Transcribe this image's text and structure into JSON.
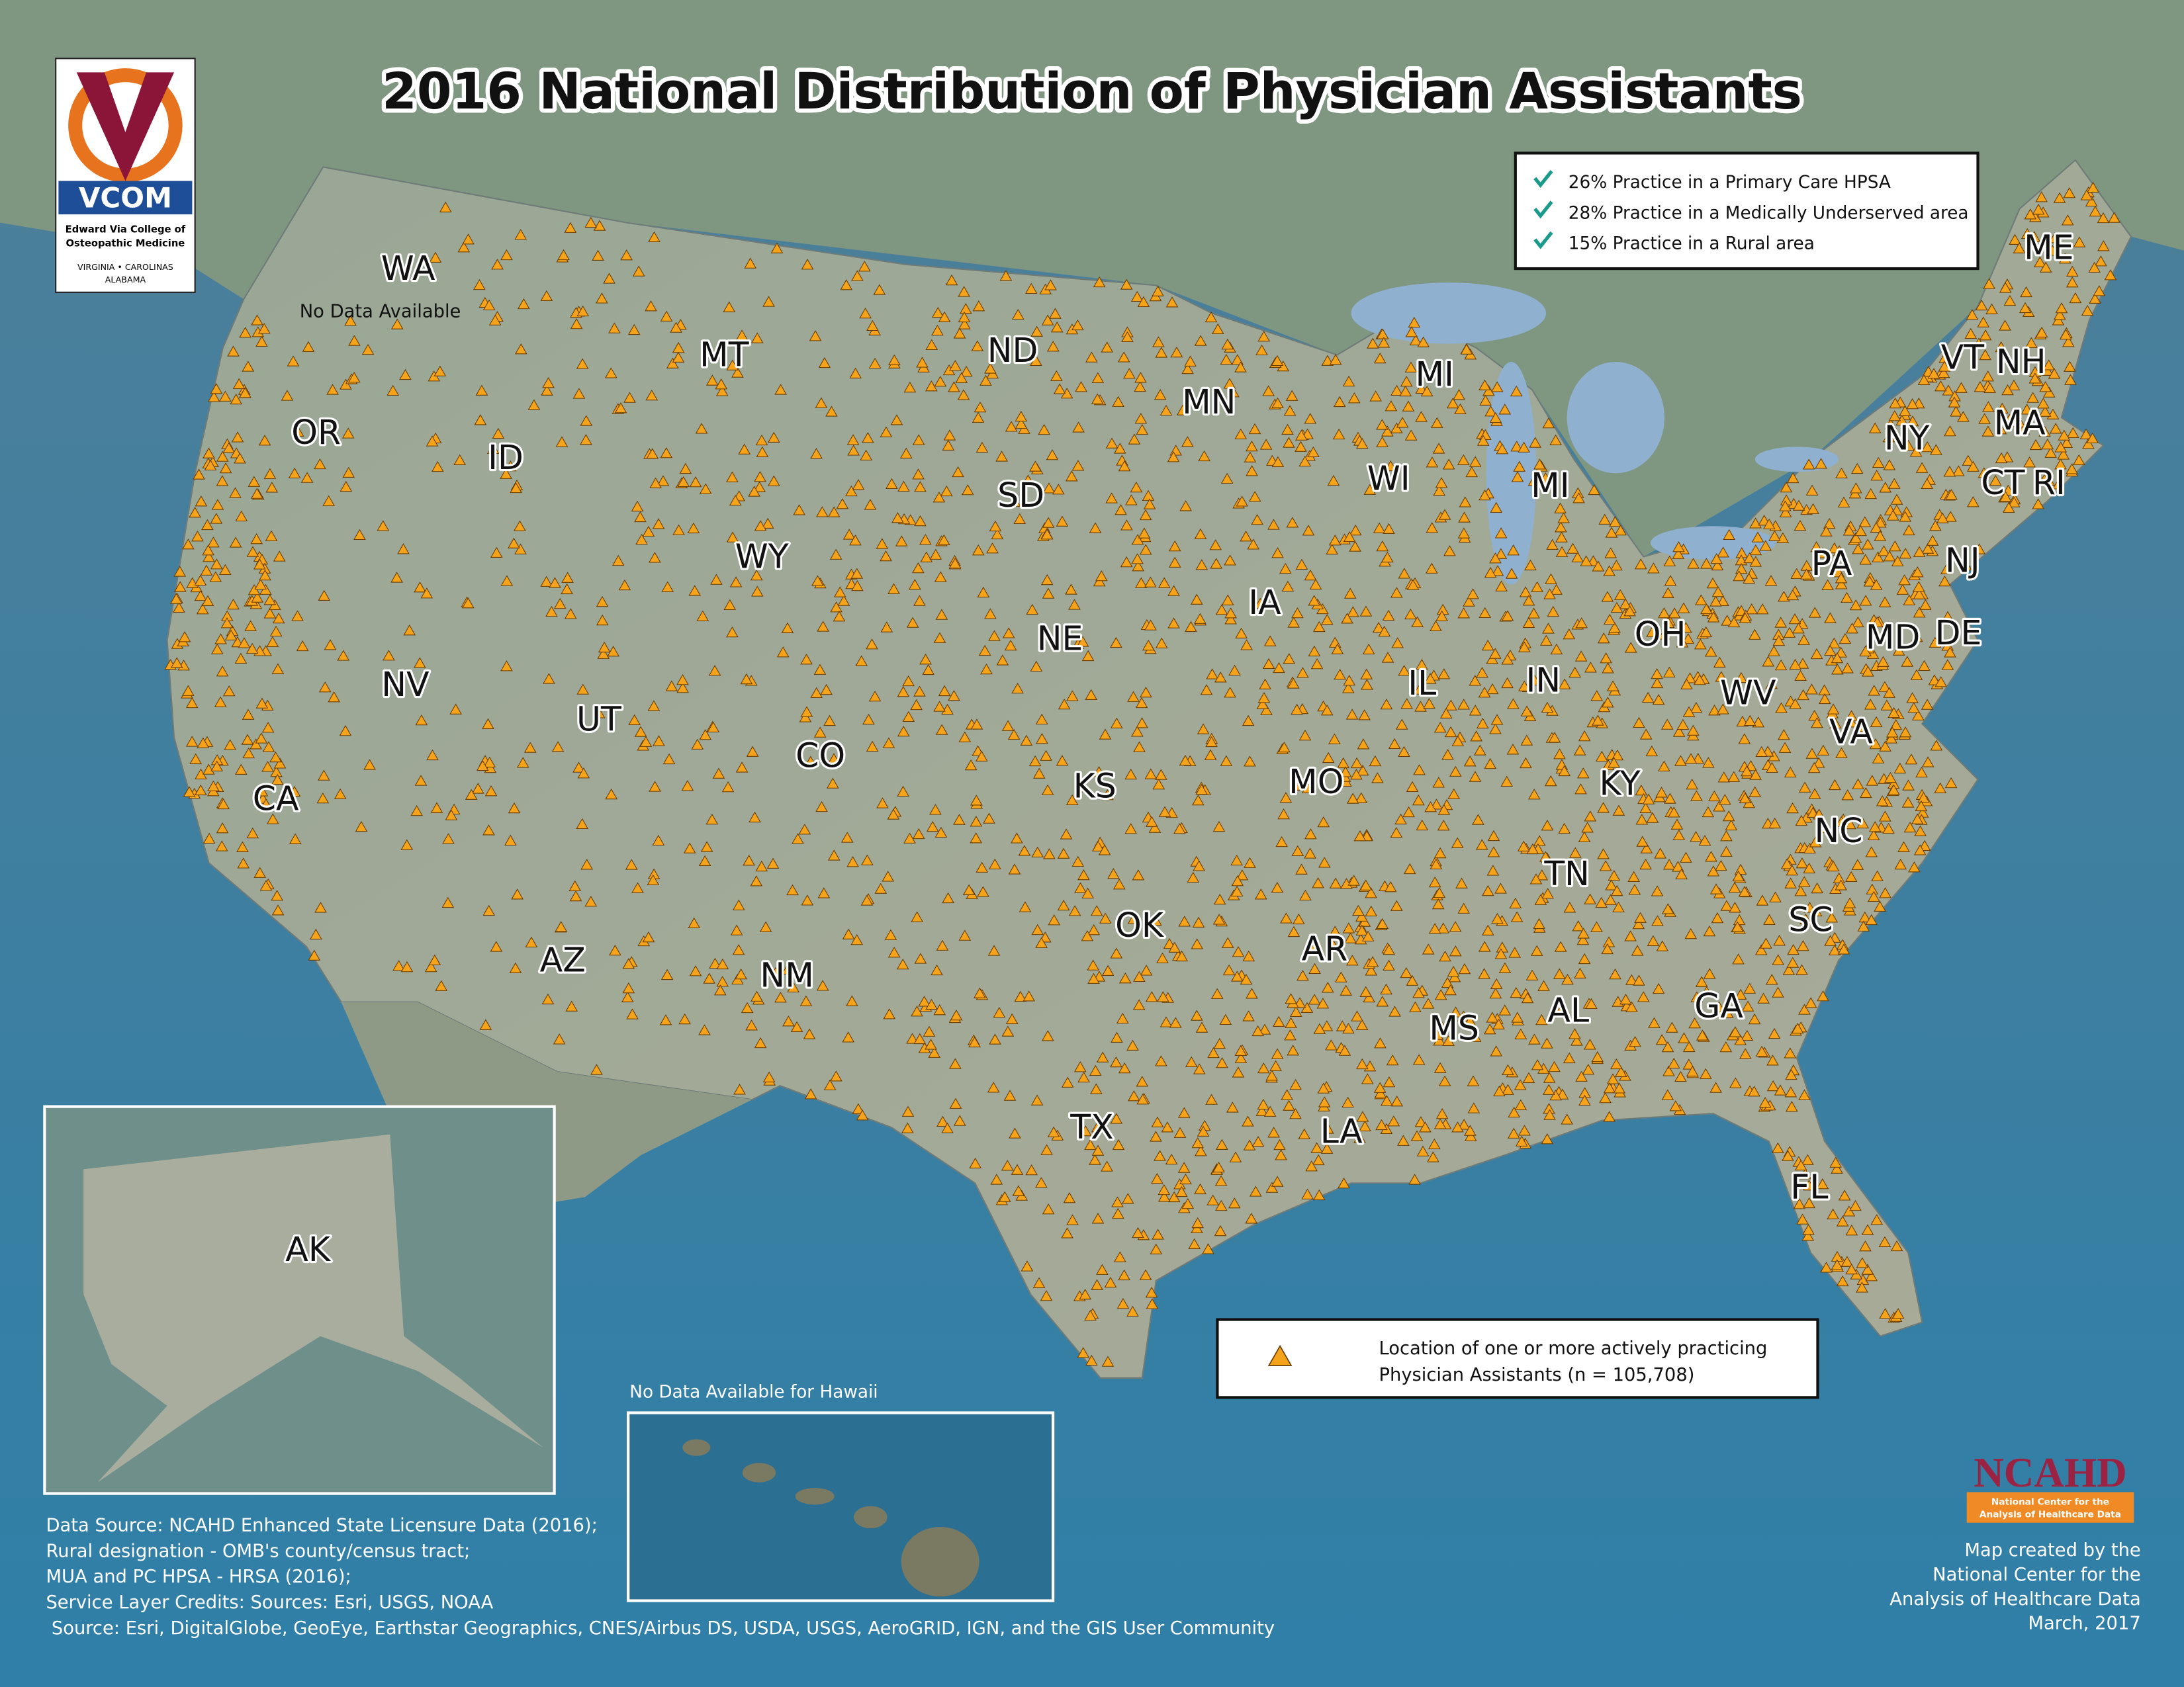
{
  "header": {
    "title": "2016 National Distribution of Physician Assistants"
  },
  "vcom_logo": {
    "name": "VCOM",
    "lines": [
      "Edward Via College of",
      "Osteopathic Medicine",
      "VIRGINIA • CAROLINAS",
      "ALABAMA"
    ]
  },
  "stats": [
    "26% Practice in a Primary Care HPSA",
    "28% Practice in a Medically Underserved area",
    "15% Practice in a Rural area"
  ],
  "wa_note": "No Data Available",
  "state_labels": [
    "WA",
    "OR",
    "ID",
    "MT",
    "ND",
    "MN",
    "MI",
    "WI",
    "MI",
    "SD",
    "WY",
    "IA",
    "NE",
    "NV",
    "UT",
    "CO",
    "CA",
    "KS",
    "MO",
    "IL",
    "IN",
    "OH",
    "PA",
    "NY",
    "VT",
    "NH",
    "MA",
    "CT",
    "RI",
    "NJ",
    "MD",
    "DE",
    "WV",
    "VA",
    "KY",
    "NC",
    "TN",
    "SC",
    "AR",
    "OK",
    "AZ",
    "NM",
    "AL",
    "GA",
    "MS",
    "LA",
    "TX",
    "FL",
    "ME",
    "AK"
  ],
  "legend": [
    "Location of one or more actively practicing",
    "Physician Assistants (n = 105,708)"
  ],
  "hawaii_note": "No Data Available for Hawaii",
  "credits": [
    "Data Source: NCAHD Enhanced State Licensure Data (2016);",
    "Rural designation - OMB's county/census tract;",
    "MUA and PC HPSA - HRSA (2016);",
    "Service Layer Credits: Sources: Esri, USGS, NOAA",
    "Source: Esri, DigitalGlobe, GeoEye, Earthstar Geographics, CNES/Airbus DS, USDA, USGS, AeroGRID, IGN, and the GIS User Community"
  ],
  "ncahd_logo": {
    "name": "NCAHD",
    "lines": [
      "National Center for the",
      "Analysis of Healthcare Data"
    ]
  },
  "map_credit": [
    "Map created by the",
    "National Center for the",
    "Analysis of Healthcare Data",
    "March, 2017"
  ]
}
